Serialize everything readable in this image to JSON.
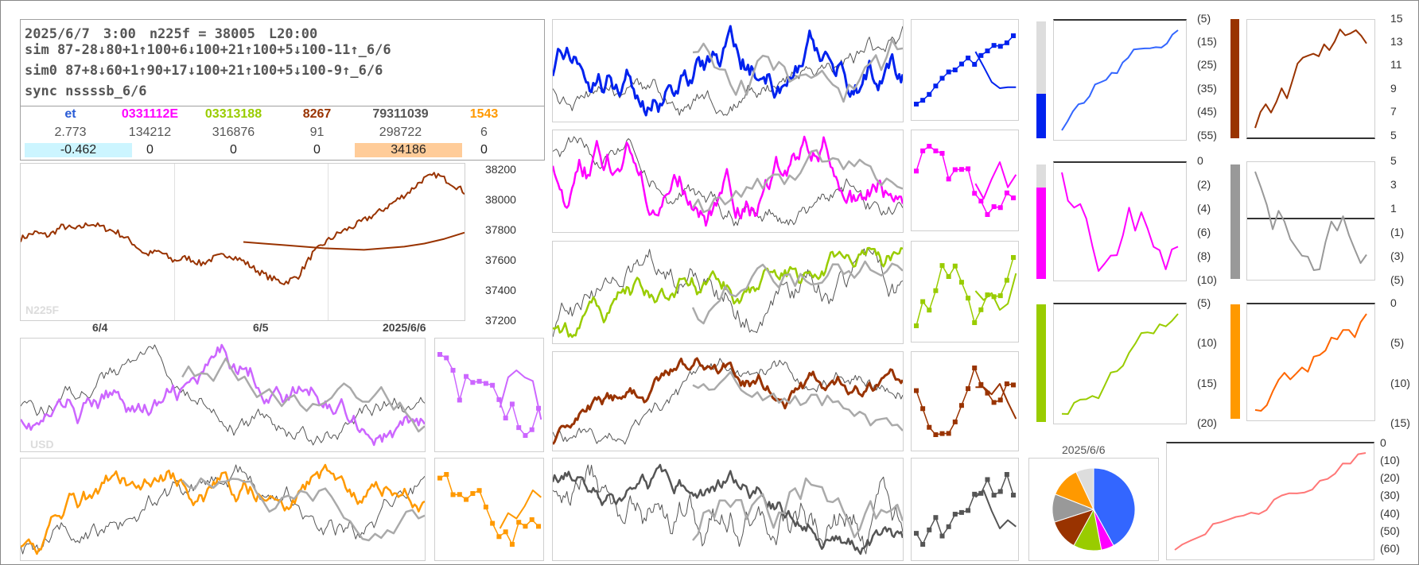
{
  "info": {
    "line1": "2025/6/7　3:00　n225f = 38005　L20:00",
    "line2": "sim 87-28↓80+1↑100+6↓100+21↑100+5↓100-11↑_6/6",
    "line3": "sim0 87+8↓60+1↑90+17↓100+21↑100+5↓100-9↑_6/6",
    "line4": "sync nssssb_6/6",
    "table": {
      "headers": [
        "et",
        "0331112E",
        "03313188",
        "8267",
        "79311039",
        "1543"
      ],
      "header_colors": [
        "#2a5cd6",
        "#ff00ff",
        "#99cc00",
        "#993300",
        "#555555",
        "#ff9900"
      ],
      "row1": [
        "2.773",
        "134212",
        "316876",
        "91",
        "298722",
        "6"
      ],
      "row2": [
        "-0.462",
        "0",
        "0",
        "0",
        "34186",
        "0"
      ],
      "row2_highlights": [
        "#ccf5ff",
        "",
        "",
        "",
        "#ffcc99",
        ""
      ]
    }
  },
  "main_chart": {
    "watermark": "N225F",
    "y_ticks": [
      "38200",
      "38000",
      "37800",
      "37600",
      "37400",
      "37200"
    ],
    "x_ticks": [
      "6/4",
      "6/5",
      "2025/6/6"
    ],
    "color": "#993300",
    "ma_color": "#993300"
  },
  "usd_chart": {
    "watermark": "USD"
  },
  "right_axis_1": [
    "(5)",
    "(15)",
    "(25)",
    "(35)",
    "(45)",
    "(55)"
  ],
  "right_axis_2": [
    "15",
    "13",
    "11",
    "9",
    "7",
    "5"
  ],
  "right_axis_3": [
    "0",
    "(2)",
    "(4)",
    "(6)",
    "(8)",
    "(10)"
  ],
  "right_axis_4": [
    "5",
    "3",
    "1",
    "(1)",
    "(3)",
    "(5)"
  ],
  "right_axis_5": [
    "(5)",
    "(10)",
    "(15)",
    "(20)"
  ],
  "right_axis_6": [
    "0",
    "(5)",
    "(10)",
    "(15)"
  ],
  "right_axis_7": [
    "0",
    "(10)",
    "(20)",
    "(30)",
    "(40)",
    "(50)",
    "(60)"
  ],
  "pie": {
    "title": "2025/6/6",
    "slices": [
      {
        "value": 42,
        "color": "#3366ff"
      },
      {
        "value": 5,
        "color": "#ff00ff"
      },
      {
        "value": 11,
        "color": "#99cc00"
      },
      {
        "value": 12,
        "color": "#993300"
      },
      {
        "value": 11,
        "color": "#999999"
      },
      {
        "value": 12,
        "color": "#ff9900"
      },
      {
        "value": 7,
        "color": "#dddddd"
      }
    ]
  },
  "chart_data": {
    "type": "line",
    "title": "",
    "series": [
      {
        "name": "N225F",
        "values": [
          37720,
          37760,
          37740,
          37800,
          37780,
          37820,
          37790,
          37760,
          37700,
          37620,
          37640,
          37580,
          37600,
          37560,
          37600,
          37620,
          37580,
          37520,
          37470,
          37440,
          37480,
          37620,
          37700,
          37760,
          37800,
          37850,
          37900,
          37960,
          38020,
          38100,
          38130,
          38080,
          38020
        ]
      },
      {
        "name": "MA",
        "values": [
          37700,
          37690,
          37680,
          37670,
          37660,
          37655,
          37650,
          37660,
          37670,
          37690,
          37720,
          37760
        ]
      }
    ],
    "ylim": [
      37200,
      38200
    ],
    "xlabel": "",
    "ylabel": ""
  }
}
